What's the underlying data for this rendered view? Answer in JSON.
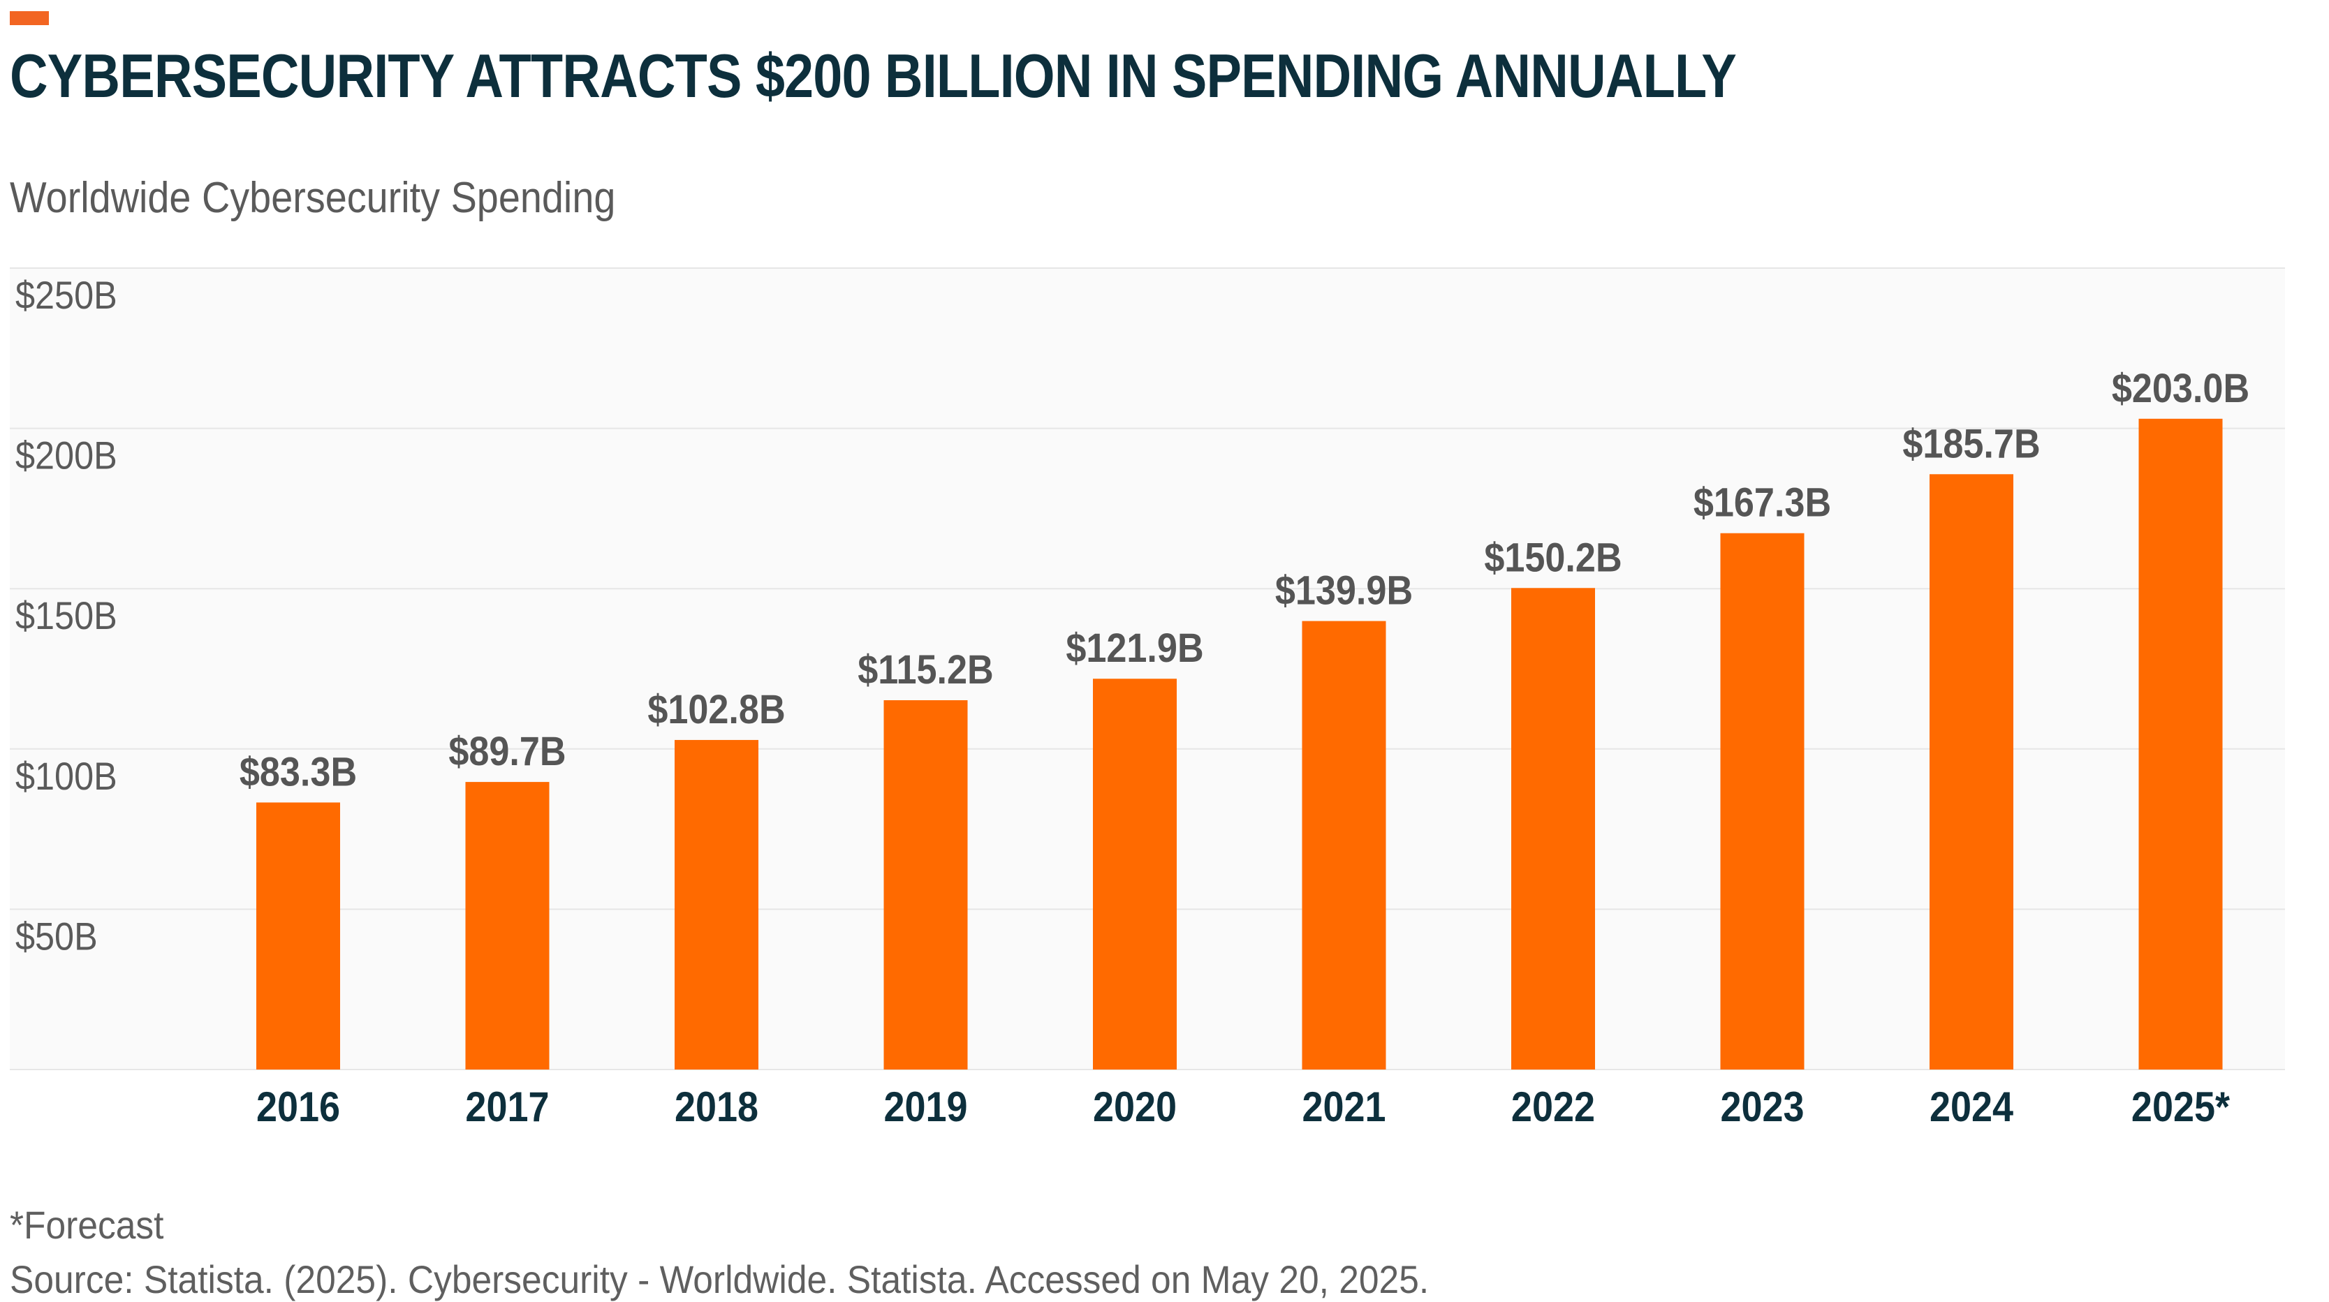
{
  "colors": {
    "accent": "#f26522",
    "bar": "#ff6a00",
    "title": "#0d2f3c",
    "plot_background": "#fafafa",
    "gridline": "#e6e6e6",
    "axis_text": "#5a5a5a",
    "label_text": "#555555",
    "year_text": "#0d2f3c"
  },
  "header": {
    "title": "CYBERSECURITY ATTRACTS $200 BILLION IN SPENDING ANNUALLY",
    "subtitle": "Worldwide Cybersecurity Spending"
  },
  "chart_data": {
    "type": "bar",
    "title": "CYBERSECURITY ATTRACTS $200 BILLION IN SPENDING ANNUALLY",
    "subtitle": "Worldwide Cybersecurity Spending",
    "categories": [
      "2016",
      "2017",
      "2018",
      "2019",
      "2020",
      "2021",
      "2022",
      "2023",
      "2024",
      "2025*"
    ],
    "values": [
      83.3,
      89.7,
      102.8,
      115.2,
      121.9,
      139.9,
      150.2,
      167.3,
      185.7,
      203.0
    ],
    "value_labels": [
      "$83.3B",
      "$89.7B",
      "$102.8B",
      "$115.2B",
      "$121.9B",
      "$139.9B",
      "$150.2B",
      "$167.3B",
      "$185.7B",
      "$203.0B"
    ],
    "ylim": [
      0,
      250
    ],
    "yticks": [
      50,
      100,
      150,
      200,
      250
    ],
    "ytick_labels": [
      "$50B",
      "$100B",
      "$150B",
      "$200B",
      "$250B"
    ],
    "xlabel": "",
    "ylabel": "",
    "grid": true,
    "units": "billions of US dollars"
  },
  "footnotes": {
    "forecast": "*Forecast",
    "source": "Source: Statista. (2025). Cybersecurity - Worldwide. Statista. Accessed on May 20, 2025."
  }
}
